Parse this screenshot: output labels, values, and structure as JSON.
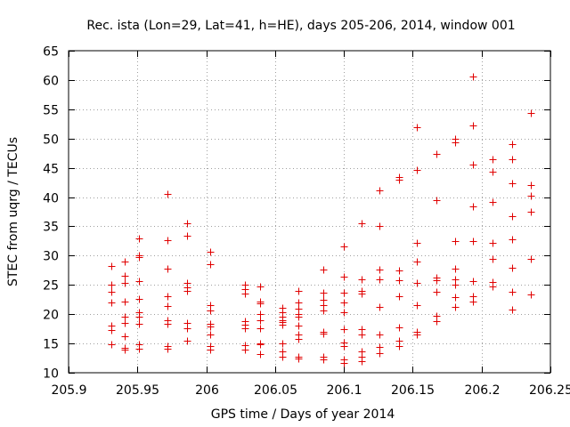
{
  "chart_data": {
    "type": "scatter",
    "title": "Rec. ista (Lon=29, Lat=41, h=HE), days 205-206, 2014, window 001",
    "xlabel": "GPS time / Days of year 2014",
    "ylabel": "STEC from uqrg / TECUs",
    "xlim": [
      205.9,
      206.25
    ],
    "ylim": [
      10,
      65
    ],
    "grid": true,
    "xticks": [
      205.9,
      205.95,
      206.0,
      206.05,
      206.1,
      206.15,
      206.2,
      206.25
    ],
    "xtick_labels": [
      "205.9",
      "205.95",
      "206",
      "206.05",
      "206.1",
      "206.15",
      "206.2",
      "206.25"
    ],
    "yticks": [
      10,
      15,
      20,
      25,
      30,
      35,
      40,
      45,
      50,
      55,
      60,
      65
    ],
    "ytick_labels": [
      "10",
      "15",
      "20",
      "25",
      "30",
      "35",
      "40",
      "45",
      "50",
      "55",
      "60",
      "65"
    ],
    "marker": "+",
    "color": "#e00000",
    "series": [
      {
        "name": "STEC",
        "x": [
          205.931,
          205.931,
          205.931,
          205.931,
          205.931,
          205.931,
          205.931,
          205.941,
          205.941,
          205.941,
          205.941,
          205.941,
          205.941,
          205.941,
          205.941,
          205.941,
          205.951,
          205.951,
          205.951,
          205.951,
          205.951,
          205.951,
          205.951,
          205.951,
          205.951,
          205.951,
          205.972,
          205.972,
          205.972,
          205.972,
          205.972,
          205.972,
          205.972,
          205.972,
          205.972,
          205.986,
          205.986,
          205.986,
          205.986,
          205.986,
          205.986,
          205.986,
          205.986,
          206.003,
          206.003,
          206.003,
          206.003,
          206.003,
          206.003,
          206.003,
          206.003,
          206.003,
          206.028,
          206.028,
          206.028,
          206.028,
          206.028,
          206.028,
          206.028,
          206.028,
          206.039,
          206.039,
          206.039,
          206.039,
          206.039,
          206.039,
          206.039,
          206.039,
          206.039,
          206.055,
          206.055,
          206.055,
          206.055,
          206.055,
          206.055,
          206.055,
          206.055,
          206.055,
          206.067,
          206.067,
          206.067,
          206.067,
          206.067,
          206.067,
          206.067,
          206.067,
          206.067,
          206.067,
          206.085,
          206.085,
          206.085,
          206.085,
          206.085,
          206.085,
          206.085,
          206.085,
          206.085,
          206.1,
          206.1,
          206.1,
          206.1,
          206.1,
          206.1,
          206.1,
          206.1,
          206.1,
          206.1,
          206.113,
          206.113,
          206.113,
          206.113,
          206.113,
          206.113,
          206.113,
          206.113,
          206.113,
          206.126,
          206.126,
          206.126,
          206.126,
          206.126,
          206.126,
          206.126,
          206.126,
          206.14,
          206.14,
          206.14,
          206.14,
          206.14,
          206.14,
          206.14,
          206.14,
          206.153,
          206.153,
          206.153,
          206.153,
          206.153,
          206.153,
          206.153,
          206.153,
          206.167,
          206.167,
          206.167,
          206.167,
          206.167,
          206.167,
          206.167,
          206.181,
          206.181,
          206.181,
          206.181,
          206.181,
          206.181,
          206.181,
          206.181,
          206.194,
          206.194,
          206.194,
          206.194,
          206.194,
          206.194,
          206.194,
          206.194,
          206.208,
          206.208,
          206.208,
          206.208,
          206.208,
          206.208,
          206.208,
          206.222,
          206.222,
          206.222,
          206.222,
          206.222,
          206.222,
          206.222,
          206.222,
          206.236,
          206.236,
          206.236,
          206.236,
          206.236,
          206.236
        ],
        "y": [
          28.2,
          25.0,
          23.8,
          22.0,
          18.0,
          17.3,
          14.8,
          29.0,
          26.5,
          25.3,
          22.2,
          19.5,
          18.5,
          16.2,
          14.2,
          13.9,
          33.0,
          30.0,
          29.8,
          25.6,
          22.6,
          20.4,
          19.6,
          18.4,
          14.8,
          14.1,
          40.5,
          32.6,
          27.8,
          23.0,
          21.4,
          19.0,
          18.4,
          14.5,
          14.1,
          35.5,
          33.4,
          25.3,
          24.6,
          24.0,
          18.5,
          17.6,
          15.5,
          30.7,
          28.6,
          21.5,
          20.6,
          18.4,
          17.9,
          16.5,
          14.6,
          14.0,
          25.0,
          24.3,
          23.5,
          18.8,
          18.2,
          17.6,
          14.7,
          13.9,
          24.8,
          22.2,
          21.9,
          20.0,
          19.0,
          17.6,
          15.0,
          14.8,
          13.2,
          21.1,
          20.3,
          19.6,
          19.0,
          18.6,
          18.2,
          15.0,
          13.6,
          12.8,
          24.0,
          22.0,
          21.0,
          20.0,
          19.5,
          18.0,
          16.5,
          15.8,
          12.8,
          12.4,
          27.6,
          23.7,
          22.5,
          21.5,
          20.6,
          17.0,
          16.7,
          12.8,
          12.3,
          31.5,
          26.4,
          23.6,
          22.0,
          20.3,
          17.5,
          15.1,
          14.6,
          12.3,
          11.6,
          35.5,
          26.0,
          24.0,
          23.5,
          17.5,
          16.6,
          13.7,
          12.8,
          11.9,
          41.2,
          35.0,
          27.6,
          26.0,
          21.3,
          16.5,
          14.4,
          13.4,
          43.5,
          43.0,
          27.5,
          25.8,
          23.0,
          17.8,
          15.5,
          14.6,
          52.0,
          44.7,
          32.2,
          29.0,
          25.3,
          21.5,
          17.0,
          16.5,
          47.3,
          39.4,
          26.2,
          25.8,
          23.8,
          19.7,
          18.8,
          50.0,
          49.3,
          32.5,
          27.8,
          26.0,
          25.0,
          22.9,
          21.3,
          60.6,
          52.2,
          45.5,
          38.4,
          32.5,
          25.6,
          23.0,
          22.2,
          46.5,
          44.3,
          39.2,
          32.2,
          29.5,
          25.5,
          24.8,
          49.1,
          46.4,
          42.4,
          36.8,
          32.8,
          28.0,
          23.9,
          20.8,
          54.4,
          42.1,
          40.3,
          37.5,
          29.5,
          23.4
        ]
      }
    ]
  }
}
